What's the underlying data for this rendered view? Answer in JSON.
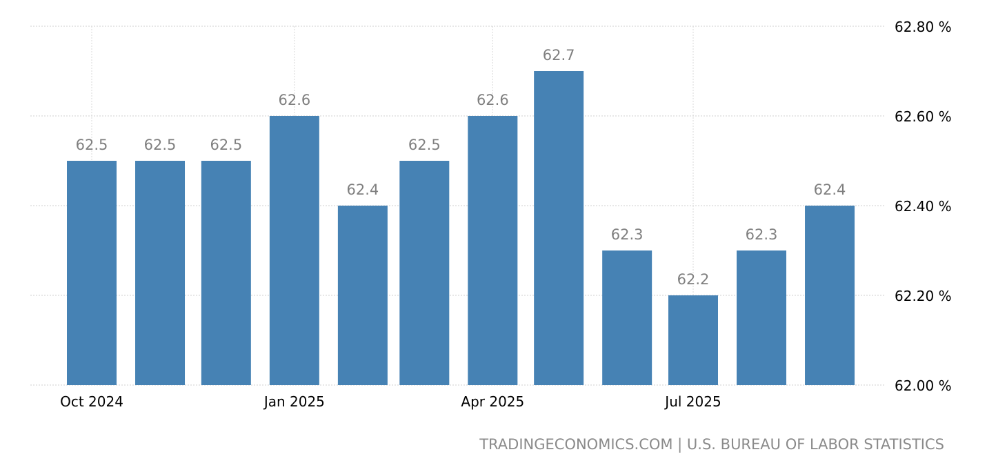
{
  "chart_data": {
    "type": "bar",
    "x": [
      "2024-10-01",
      "2024-11-01",
      "2024-12-01",
      "2025-01-01",
      "2025-02-01",
      "2025-03-01",
      "2025-04-01",
      "2025-05-01",
      "2025-06-01",
      "2025-07-01",
      "2025-08-01",
      "2025-09-01"
    ],
    "values": [
      62.5,
      62.5,
      62.5,
      62.6,
      62.4,
      62.5,
      62.6,
      62.7,
      62.3,
      62.2,
      62.3,
      62.4
    ],
    "data_labels": [
      "62.5",
      "62.5",
      "62.5",
      "62.6",
      "62.4",
      "62.5",
      "62.6",
      "62.7",
      "62.3",
      "62.2",
      "62.3",
      "62.4"
    ],
    "x_ticks": [
      {
        "date": "2024-10-01",
        "label": "Oct 2024"
      },
      {
        "date": "2025-01-01",
        "label": "Jan 2025"
      },
      {
        "date": "2025-04-01",
        "label": "Apr 2025"
      },
      {
        "date": "2025-07-01",
        "label": "Jul 2025"
      }
    ],
    "y_ticks": [
      {
        "value": 62.0,
        "label": "62.00 %"
      },
      {
        "value": 62.2,
        "label": "62.20 %"
      },
      {
        "value": 62.4,
        "label": "62.40 %"
      },
      {
        "value": 62.6,
        "label": "62.60 %"
      },
      {
        "value": 62.8,
        "label": "62.80 %"
      }
    ],
    "ylim": [
      62.0,
      62.8
    ],
    "y_axis_position": "right",
    "grid": true,
    "bar_color": "#4682b4",
    "label_color": "#7f7f7f"
  },
  "footer": {
    "source": "TRADINGECONOMICS.COM | U.S. BUREAU OF LABOR STATISTICS"
  }
}
